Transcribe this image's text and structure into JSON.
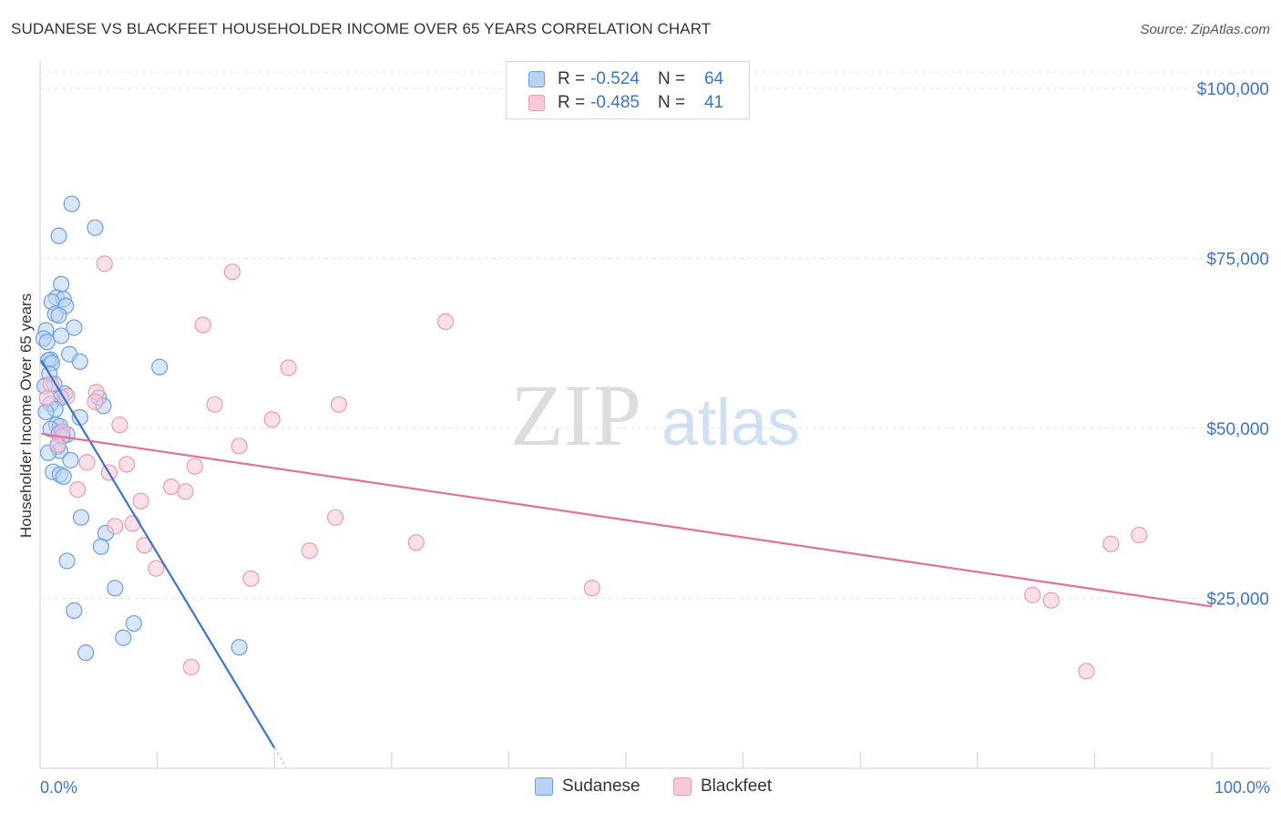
{
  "header": {
    "title": "SUDANESE VS BLACKFEET HOUSEHOLDER INCOME OVER 65 YEARS CORRELATION CHART",
    "source": "Source: ZipAtlas.com"
  },
  "watermark": {
    "zip": "ZIP",
    "atlas": "atlas"
  },
  "legend": {
    "rows": [
      {
        "r_label": "R =",
        "r_value": "-0.524",
        "n_label": "N =",
        "n_value": "64"
      },
      {
        "r_label": "R =",
        "r_value": "-0.485",
        "n_label": "N =",
        "n_value": "41"
      }
    ]
  },
  "colors": {
    "sudanese_fill": "#b7d2f4",
    "sudanese_stroke": "#6d9ee0",
    "sudanese_line": "#3b74d4",
    "blackfeet_fill": "#f9c7d6",
    "blackfeet_stroke": "#e99ab4",
    "blackfeet_line": "#e56f97",
    "tick_label": "#3b74c8",
    "grid": "#e4e4e4"
  },
  "chart_data": {
    "type": "scatter",
    "title": "SUDANESE VS BLACKFEET HOUSEHOLDER INCOME OVER 65 YEARS CORRELATION CHART",
    "xlabel": "",
    "ylabel": "Householder Income Over 65 years",
    "xlim": [
      0,
      100
    ],
    "ylim": [
      0,
      104000
    ],
    "x_tick_labels": [
      "0.0%",
      "100.0%"
    ],
    "y_ticks": [
      25000,
      50000,
      75000,
      100000
    ],
    "y_tick_labels": [
      "$25,000",
      "$50,000",
      "$75,000",
      "$100,000"
    ],
    "grid": true,
    "legend_position": "top-center",
    "series": [
      {
        "name": "Sudanese",
        "r": -0.524,
        "n": 64,
        "trend": {
          "x": [
            0.1,
            20.0
          ],
          "y": [
            60000,
            3000
          ]
        },
        "points": [
          [
            2.7,
            83000
          ],
          [
            4.7,
            79500
          ],
          [
            1.6,
            78300
          ],
          [
            1.8,
            71200
          ],
          [
            1.4,
            69200
          ],
          [
            2.0,
            69000
          ],
          [
            1.0,
            68600
          ],
          [
            2.2,
            68000
          ],
          [
            1.3,
            66800
          ],
          [
            1.6,
            66600
          ],
          [
            2.9,
            64800
          ],
          [
            0.5,
            64400
          ],
          [
            1.8,
            63600
          ],
          [
            0.3,
            63200
          ],
          [
            0.6,
            62700
          ],
          [
            2.5,
            60900
          ],
          [
            0.9,
            60100
          ],
          [
            0.7,
            60000
          ],
          [
            3.4,
            59800
          ],
          [
            1.0,
            59600
          ],
          [
            10.2,
            59000
          ],
          [
            0.8,
            58000
          ],
          [
            1.2,
            56500
          ],
          [
            0.4,
            56200
          ],
          [
            2.1,
            55100
          ],
          [
            1.8,
            54500
          ],
          [
            5.0,
            54500
          ],
          [
            0.9,
            53600
          ],
          [
            5.4,
            53300
          ],
          [
            1.3,
            52800
          ],
          [
            0.5,
            52400
          ],
          [
            3.4,
            51600
          ],
          [
            1.4,
            50500
          ],
          [
            1.7,
            50300
          ],
          [
            0.9,
            49900
          ],
          [
            1.6,
            49200
          ],
          [
            2.3,
            49100
          ],
          [
            1.9,
            48800
          ],
          [
            1.5,
            47300
          ],
          [
            1.7,
            46700
          ],
          [
            0.7,
            46400
          ],
          [
            2.6,
            45300
          ],
          [
            1.1,
            43600
          ],
          [
            1.7,
            43200
          ],
          [
            2.0,
            42900
          ],
          [
            3.5,
            36900
          ],
          [
            5.6,
            34600
          ],
          [
            5.2,
            32600
          ],
          [
            2.3,
            30500
          ],
          [
            6.4,
            26500
          ],
          [
            2.9,
            23200
          ],
          [
            8.0,
            21300
          ],
          [
            7.1,
            19200
          ],
          [
            3.9,
            17000
          ],
          [
            17.0,
            17800
          ]
        ]
      },
      {
        "name": "Blackfeet",
        "r": -0.485,
        "n": 41,
        "trend": {
          "x": [
            0.1,
            100.0
          ],
          "y": [
            49200,
            23800
          ]
        },
        "points": [
          [
            5.5,
            74200
          ],
          [
            16.4,
            73000
          ],
          [
            34.6,
            65700
          ],
          [
            13.9,
            65200
          ],
          [
            21.2,
            58900
          ],
          [
            0.9,
            56500
          ],
          [
            4.8,
            55300
          ],
          [
            2.3,
            54700
          ],
          [
            0.6,
            54400
          ],
          [
            14.9,
            53500
          ],
          [
            25.5,
            53500
          ],
          [
            4.7,
            53900
          ],
          [
            19.8,
            51300
          ],
          [
            6.8,
            50500
          ],
          [
            1.9,
            49500
          ],
          [
            1.5,
            47600
          ],
          [
            17.0,
            47400
          ],
          [
            4.0,
            45000
          ],
          [
            7.4,
            44700
          ],
          [
            13.2,
            44400
          ],
          [
            5.9,
            43500
          ],
          [
            11.2,
            41400
          ],
          [
            12.4,
            40700
          ],
          [
            3.2,
            41000
          ],
          [
            8.6,
            39300
          ],
          [
            25.2,
            36900
          ],
          [
            7.9,
            36000
          ],
          [
            6.4,
            35600
          ],
          [
            8.9,
            32800
          ],
          [
            23.0,
            32000
          ],
          [
            32.1,
            33200
          ],
          [
            93.8,
            34300
          ],
          [
            91.4,
            33000
          ],
          [
            9.9,
            29400
          ],
          [
            18.0,
            27900
          ],
          [
            47.1,
            26500
          ],
          [
            84.7,
            25500
          ],
          [
            86.3,
            24700
          ],
          [
            12.9,
            14900
          ],
          [
            89.3,
            14300
          ]
        ]
      }
    ]
  }
}
